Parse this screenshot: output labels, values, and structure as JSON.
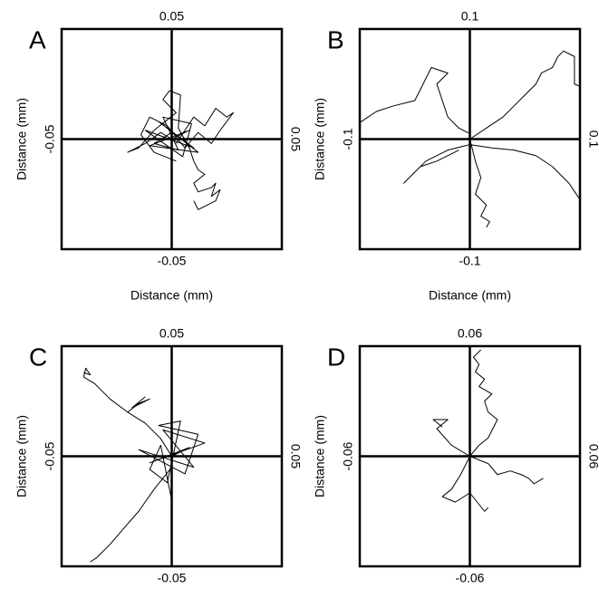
{
  "chart_data": [
    {
      "type": "line",
      "title": "A",
      "xlabel": "Distance (mm)",
      "ylabel": "Distance (mm)",
      "color": "#000000",
      "xlim": [
        -0.05,
        0.05
      ],
      "ylim": [
        -0.05,
        0.05
      ],
      "xticks": [
        -0.05,
        0.05
      ],
      "yticks": [
        -0.05,
        0.05
      ],
      "series": [
        {
          "x": [
            0,
            -0.005,
            -0.012,
            -0.02,
            -0.015,
            -0.008,
            -0.003,
            0.002,
            -0.004,
            -0.001,
            0.004,
            0.003,
            0.008,
            0.01,
            0.012,
            0.015,
            0.01,
            0.012,
            0.018,
            0.02,
            0.018,
            0.022,
            0.02,
            0.016,
            0.012,
            0.01
          ],
          "values": [
            0,
            0.003,
            -0.002,
            -0.006,
            -0.004,
            0.004,
            0.008,
            0.012,
            0.018,
            0.022,
            0.02,
            0.005,
            -0.004,
            -0.01,
            -0.014,
            -0.016,
            -0.02,
            -0.024,
            -0.022,
            -0.02,
            -0.026,
            -0.023,
            -0.028,
            -0.03,
            -0.032,
            -0.028
          ]
        },
        {
          "x": [
            0.002,
            0.006,
            0.01,
            0.015,
            0.02,
            0.025,
            0.028,
            0.022,
            0.018,
            0.012,
            0.006,
            -0.002,
            -0.01,
            -0.014,
            -0.008,
            0.002
          ],
          "values": [
            -0.002,
            0.004,
            0.01,
            0.006,
            0.014,
            0.01,
            0.012,
            0.004,
            -0.002,
            0.003,
            -0.004,
            0.006,
            0.01,
            0.002,
            -0.006,
            -0.01
          ]
        },
        {
          "x": [
            0,
            0.008,
            -0.01,
            0.012,
            -0.006,
            0.01,
            -0.012,
            0.005,
            0.009,
            -0.004,
            0.003,
            -0.008,
            0
          ],
          "values": [
            0,
            0.004,
            -0.003,
            -0.006,
            0.008,
            -0.004,
            0.004,
            -0.008,
            0.007,
            0.01,
            -0.005,
            -0.002,
            0.003
          ]
        }
      ]
    },
    {
      "type": "line",
      "title": "B",
      "xlabel": "Distance (mm)",
      "ylabel": "Distance (mm)",
      "color": "#000000",
      "xlim": [
        -0.1,
        0.1
      ],
      "ylim": [
        -0.1,
        0.1
      ],
      "xticks": [
        -0.1,
        0.1
      ],
      "yticks": [
        -0.1,
        0.1
      ],
      "series": [
        {
          "x": [
            0,
            0.015,
            0.03,
            0.04,
            0.05,
            0.06,
            0.065,
            0.075,
            0.08,
            0.085,
            0.095,
            0.095,
            0.1
          ],
          "values": [
            0,
            0.01,
            0.02,
            0.03,
            0.04,
            0.05,
            0.06,
            0.065,
            0.075,
            0.08,
            0.075,
            0.05,
            0.048
          ]
        },
        {
          "x": [
            0,
            -0.01,
            -0.02,
            -0.03,
            -0.02,
            -0.035,
            -0.05,
            -0.07,
            -0.085,
            -0.1
          ],
          "values": [
            0.005,
            0.01,
            0.02,
            0.05,
            0.06,
            0.065,
            0.035,
            0.03,
            0.025,
            0.015
          ]
        },
        {
          "x": [
            0,
            0.005,
            0.01,
            0.005,
            0.015,
            0.01,
            0.018,
            0.015
          ],
          "values": [
            0,
            -0.02,
            -0.035,
            -0.05,
            -0.06,
            -0.07,
            -0.075,
            -0.08
          ]
        },
        {
          "x": [
            0,
            0.02,
            0.04,
            0.06,
            0.075,
            0.09,
            0.1
          ],
          "values": [
            -0.005,
            -0.008,
            -0.01,
            -0.015,
            -0.025,
            -0.04,
            -0.055
          ]
        },
        {
          "x": [
            0,
            -0.02,
            -0.04,
            -0.05,
            -0.06,
            -0.055,
            -0.045,
            -0.03,
            -0.01
          ],
          "values": [
            -0.005,
            -0.01,
            -0.02,
            -0.03,
            -0.04,
            -0.035,
            -0.025,
            -0.02,
            -0.01
          ]
        }
      ]
    },
    {
      "type": "line",
      "title": "C",
      "ylabel": "Distance (mm)",
      "color": "#000000",
      "xlim": [
        -0.05,
        0.05
      ],
      "ylim": [
        -0.05,
        0.05
      ],
      "xticks": [
        -0.05,
        0.05
      ],
      "yticks": [
        -0.05,
        0.05
      ],
      "series": [
        {
          "x": [
            0,
            -0.005,
            -0.012,
            -0.02,
            -0.028,
            -0.035,
            -0.04,
            -0.039,
            -0.037,
            -0.04
          ],
          "values": [
            0,
            0.008,
            0.015,
            0.02,
            0.026,
            0.033,
            0.036,
            0.04,
            0.037,
            0.038
          ]
        },
        {
          "x": [
            0,
            -0.008,
            -0.015,
            -0.022,
            -0.028,
            -0.034,
            -0.037
          ],
          "values": [
            -0.005,
            -0.015,
            -0.025,
            -0.033,
            -0.04,
            -0.046,
            -0.048
          ]
        },
        {
          "x": [
            0,
            0.008,
            -0.01,
            0.015,
            -0.004,
            0.01,
            -0.015,
            0.006,
            0.012,
            -0.006,
            0.004,
            -0.002,
            -0.01,
            -0.005,
            0
          ],
          "values": [
            0,
            0.004,
            -0.003,
            0.006,
            0.012,
            -0.005,
            0.003,
            -0.008,
            0.01,
            0.014,
            0.016,
            -0.012,
            -0.006,
            0.005,
            -0.02
          ]
        },
        {
          "x": [
            -0.02,
            -0.015,
            -0.01,
            -0.018,
            -0.012
          ],
          "values": [
            0.02,
            0.024,
            0.026,
            0.022,
            0.027
          ]
        }
      ]
    },
    {
      "type": "line",
      "title": "D",
      "ylabel": "Distance (mm)",
      "color": "#000000",
      "xlim": [
        -0.06,
        0.06
      ],
      "ylim": [
        -0.06,
        0.06
      ],
      "xticks": [
        -0.06,
        0.06
      ],
      "yticks": [
        -0.06,
        0.06
      ],
      "series": [
        {
          "x": [
            0,
            0.005,
            0.01,
            0.012,
            0.015,
            0.01,
            0.008,
            0.012,
            0.005,
            0.008,
            0.003,
            0.005,
            0.002,
            0.006
          ],
          "values": [
            0,
            0.006,
            0.01,
            0.014,
            0.02,
            0.024,
            0.03,
            0.034,
            0.038,
            0.042,
            0.046,
            0.05,
            0.054,
            0.058
          ]
        },
        {
          "x": [
            0,
            0.01,
            0.015,
            0.022,
            0.028,
            0.032,
            0.035,
            0.04
          ],
          "values": [
            0,
            -0.004,
            -0.01,
            -0.008,
            -0.01,
            -0.012,
            -0.015,
            -0.012
          ]
        },
        {
          "x": [
            0,
            -0.005,
            -0.01,
            -0.015,
            -0.008,
            0,
            0.008,
            0.01
          ],
          "values": [
            0,
            -0.01,
            -0.018,
            -0.022,
            -0.025,
            -0.02,
            -0.03,
            -0.028
          ]
        },
        {
          "x": [
            0,
            -0.01,
            -0.018,
            -0.012,
            -0.02,
            -0.015
          ],
          "values": [
            0,
            0.006,
            0.015,
            0.02,
            0.02,
            0.016
          ]
        }
      ]
    }
  ]
}
